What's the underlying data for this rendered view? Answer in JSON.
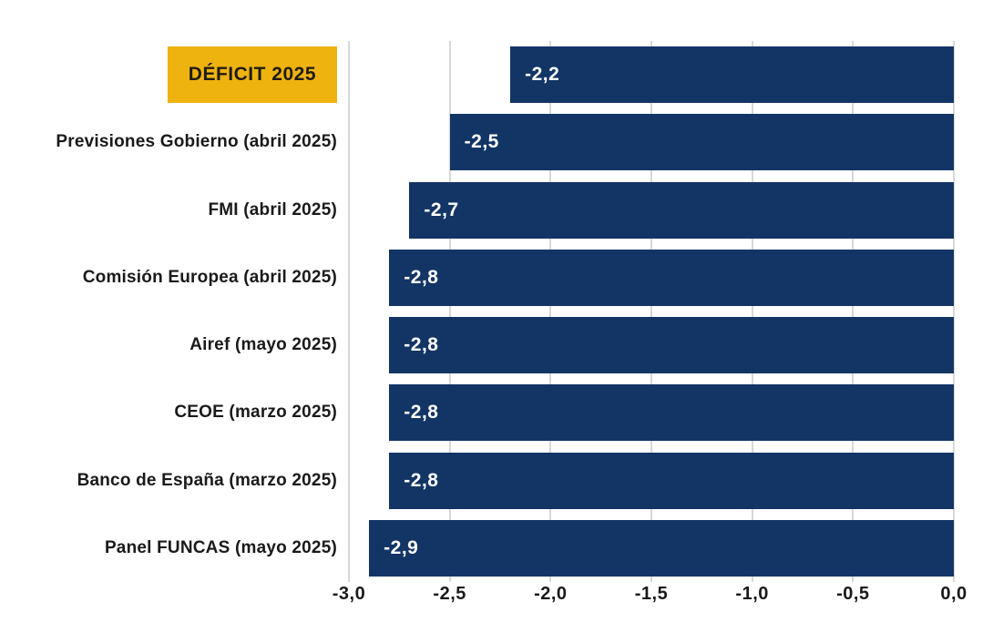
{
  "title_badge": "DÉFICIT 2025",
  "colors": {
    "bar": "#123565",
    "badge": "#efb310",
    "grid": "#b0b0b0",
    "text": "#1a1a1a",
    "value_text": "#ffffff"
  },
  "chart_data": {
    "type": "bar",
    "orientation": "horizontal",
    "title": "DÉFICIT 2025",
    "categories": [
      "DÉFICIT 2025",
      "Previsiones Gobierno (abril 2025)",
      "FMI (abril 2025)",
      "Comisión Europea (abril 2025)",
      "Airef (mayo 2025)",
      "CEOE (marzo 2025)",
      "Banco de España (marzo 2025)",
      "Panel FUNCAS (mayo 2025)"
    ],
    "values": [
      -2.2,
      -2.5,
      -2.7,
      -2.8,
      -2.8,
      -2.8,
      -2.8,
      -2.9
    ],
    "value_labels": [
      "-2,2",
      "-2,5",
      "-2,7",
      "-2,8",
      "-2,8",
      "-2,8",
      "-2,8",
      "-2,9"
    ],
    "xlim": [
      -3.0,
      0.0
    ],
    "x_ticks": [
      -3.0,
      -2.5,
      -2.0,
      -1.5,
      -1.0,
      -0.5,
      0.0
    ],
    "x_tick_labels": [
      "-3,0",
      "-2,5",
      "-2,0",
      "-1,5",
      "-1,0",
      "-0,5",
      "0,0"
    ],
    "grid": true,
    "legend": "none",
    "xlabel": "",
    "ylabel": ""
  }
}
